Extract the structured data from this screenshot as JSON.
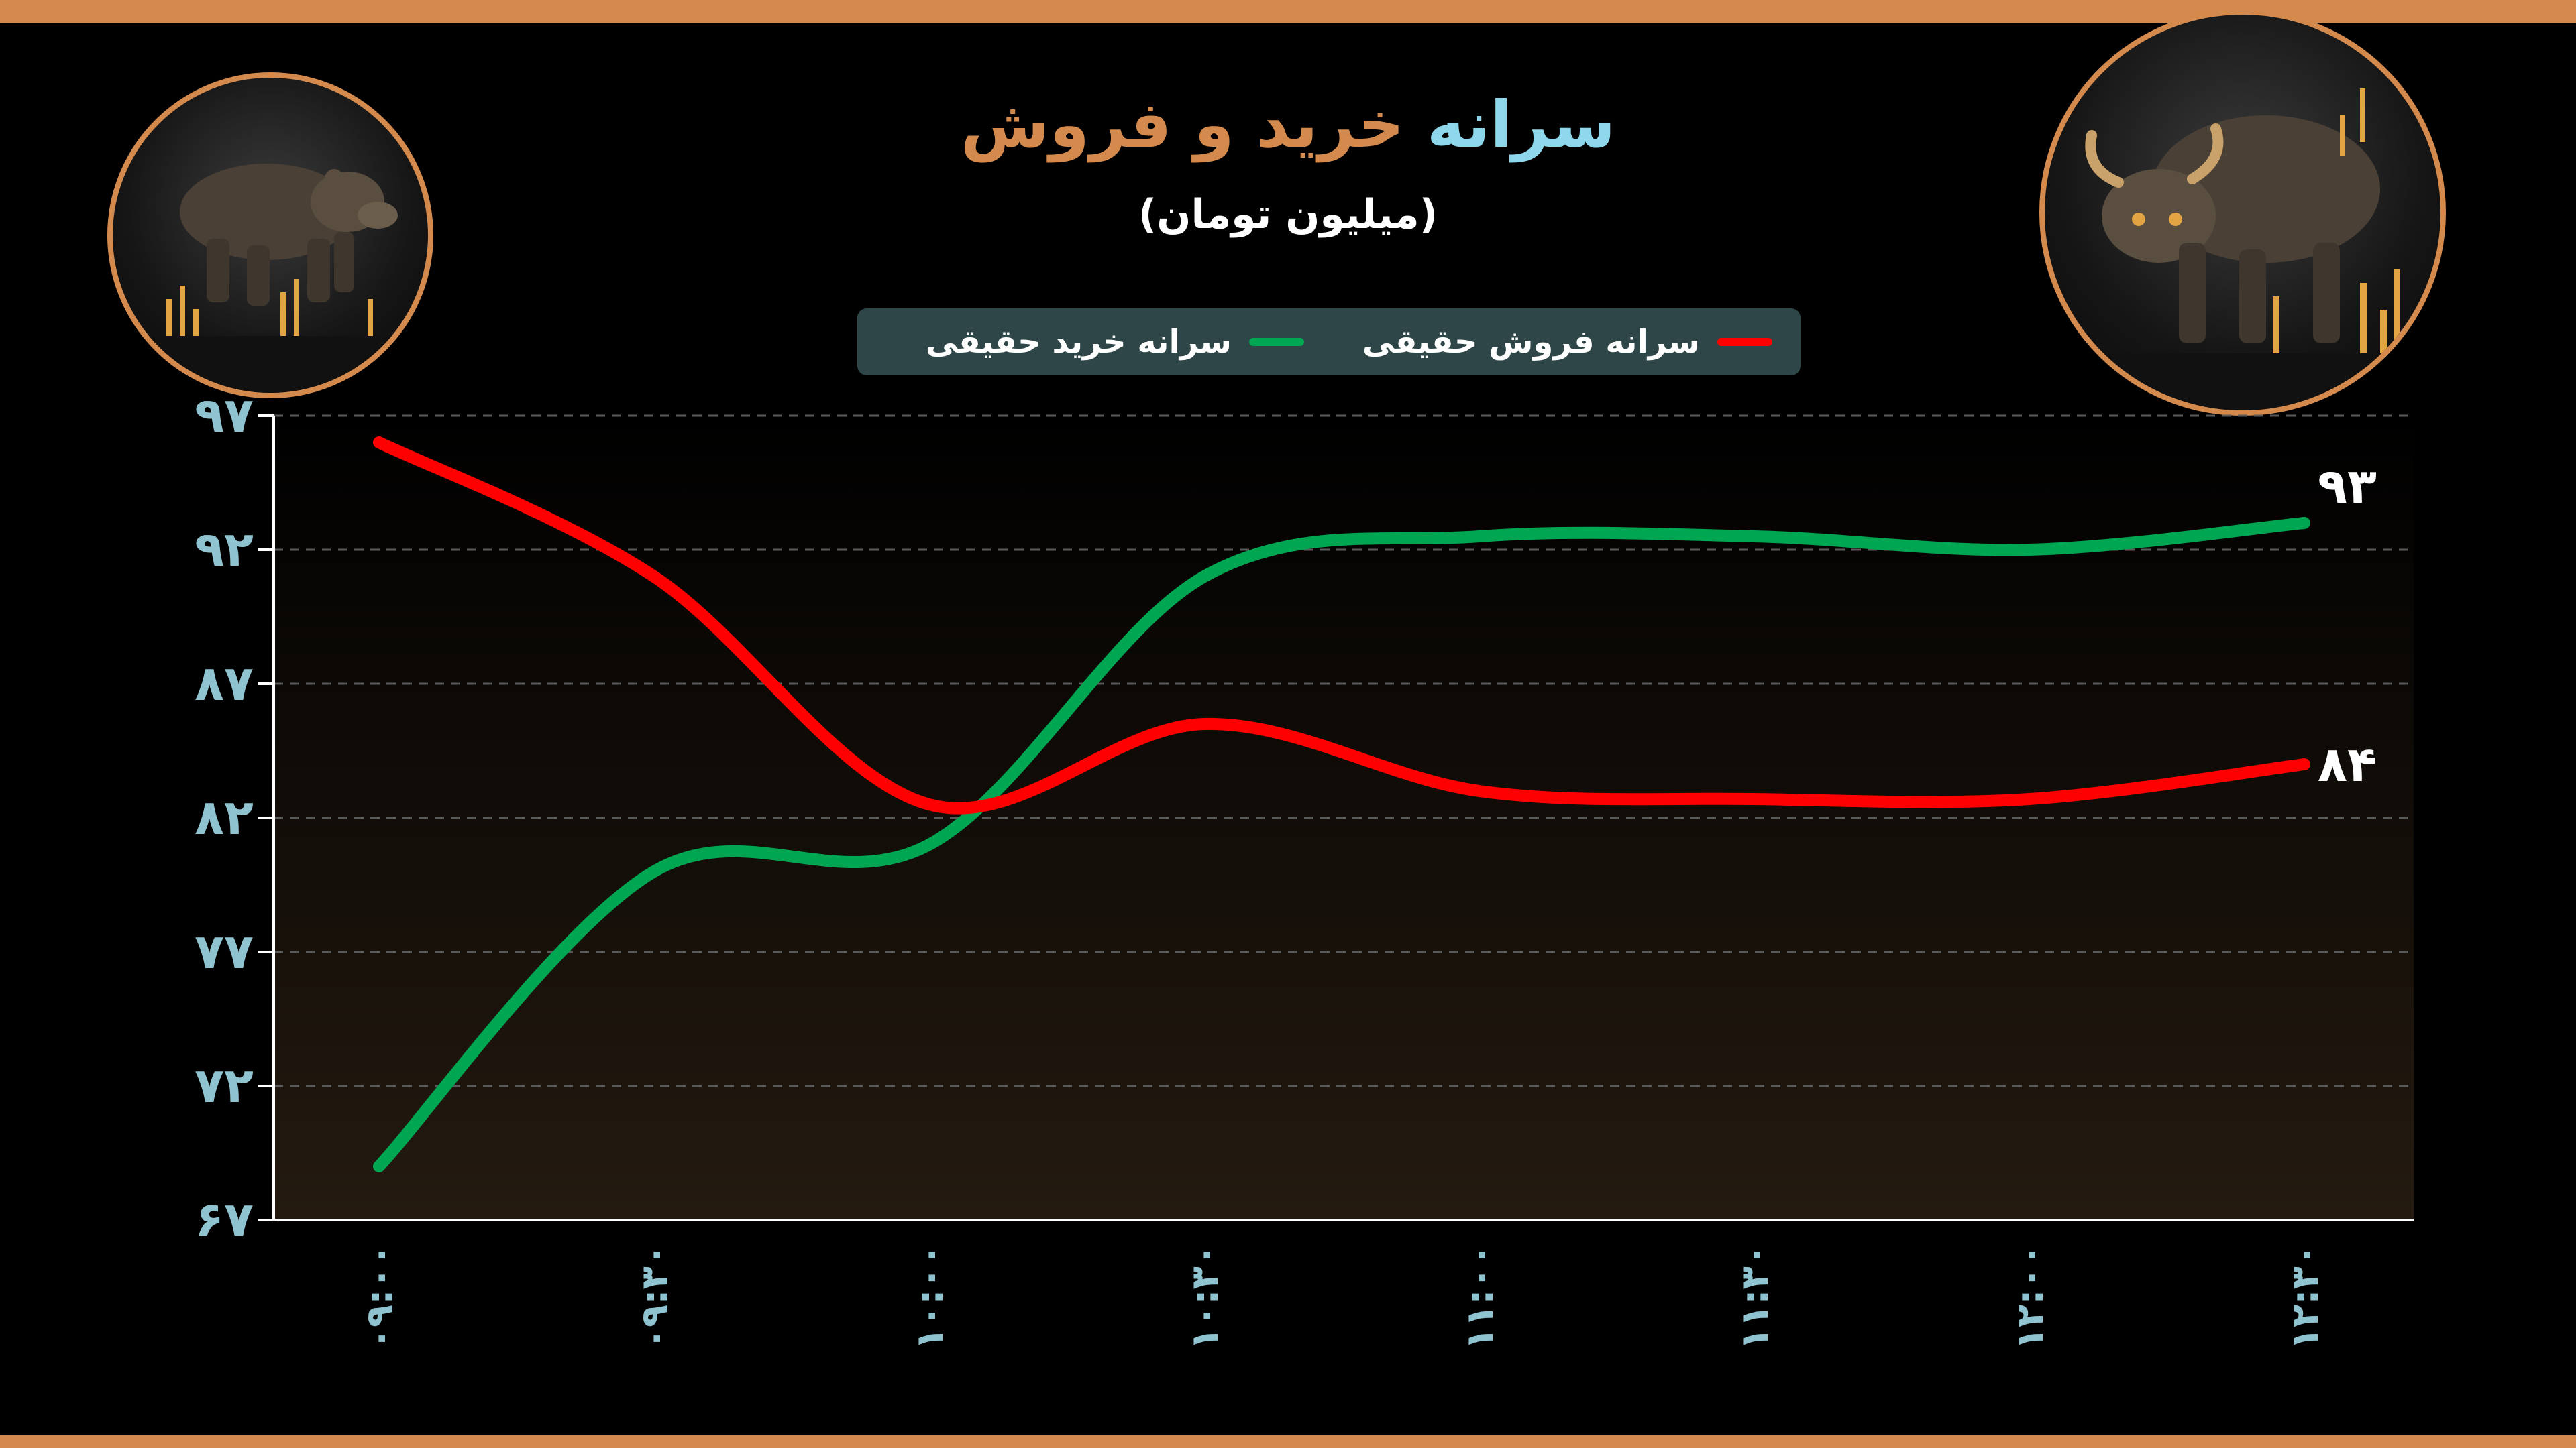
{
  "header": {
    "title_part1": "سرانه",
    "title_part2": "خرید و فروش",
    "subtitle": "(میلیون تومان)"
  },
  "colors": {
    "accent": "#D58A4D",
    "title_blue": "#8ED6EA",
    "axis_tick": "#8FC3CF",
    "sell_line": "#FF0000",
    "buy_line": "#00A651",
    "legend_bg": "#2E4647"
  },
  "icons": {
    "left": "bear-icon",
    "right": "bull-icon"
  },
  "chart_data": {
    "type": "line",
    "categories": [
      "۰۹:۰۰",
      "۰۹:۳۰",
      "۱۰:۰۰",
      "۱۰:۳۰",
      "۱۱:۰۰",
      "۱۱:۳۰",
      "۱۲:۰۰",
      "۱۲:۳۰"
    ],
    "series": [
      {
        "name": "سرانه فروش حقیقی",
        "color": "#FF0000",
        "values": [
          96,
          91,
          82.5,
          85.5,
          83,
          82.7,
          82.7,
          84
        ]
      },
      {
        "name": "سرانه خرید حقیقی",
        "color": "#00A651",
        "values": [
          69,
          80,
          81,
          91,
          92.5,
          92.5,
          92,
          93
        ]
      }
    ],
    "end_labels": [
      "۸۴",
      "۹۳"
    ],
    "y_ticks": [
      67,
      72,
      77,
      82,
      87,
      92,
      97
    ],
    "y_tick_labels": [
      "۶۷",
      "۷۲",
      "۷۷",
      "۸۲",
      "۸۷",
      "۹۲",
      "۹۷"
    ],
    "ylim": [
      67,
      97
    ],
    "grid": true,
    "legend_position": "top-center"
  }
}
